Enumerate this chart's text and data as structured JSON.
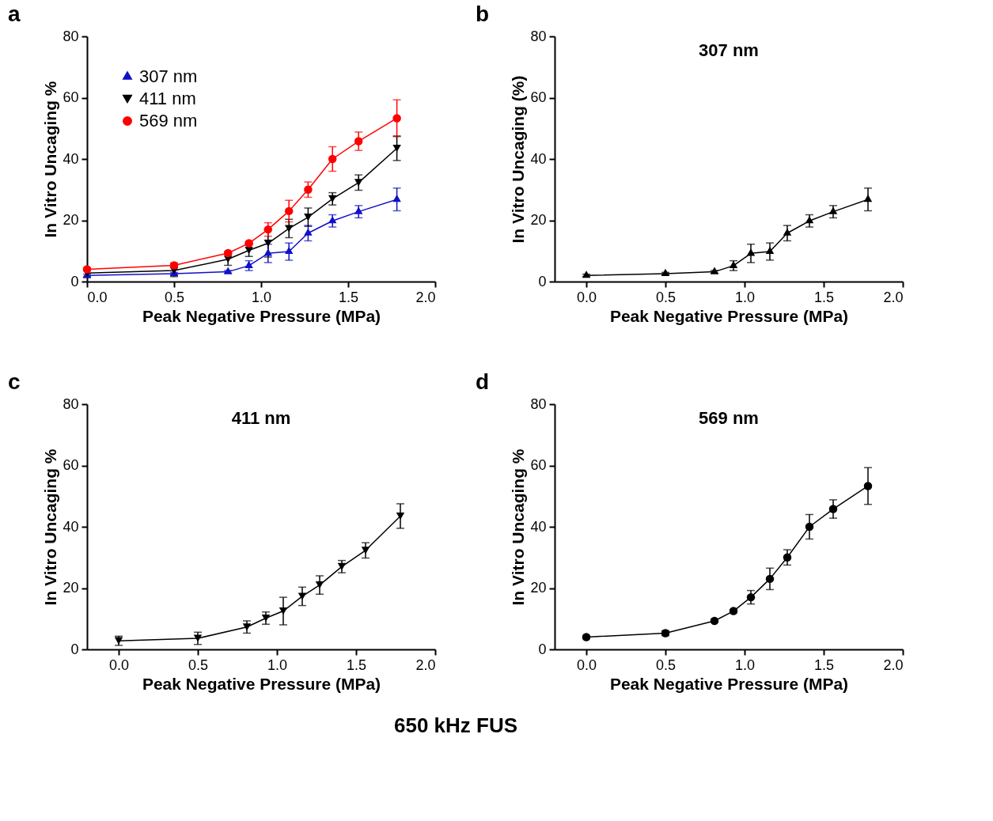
{
  "chart_data": [
    {
      "type": "line",
      "xlabel": "Peak Negative Pressure (MPa)",
      "ylabel": "In Vitro Uncaging %",
      "annotations": [
        "a"
      ],
      "legend": "top left",
      "grid": false,
      "x": [
        0,
        0.5,
        0.81,
        0.93,
        1.04,
        1.16,
        1.27,
        1.41,
        1.56,
        1.78
      ],
      "xlim": [
        0,
        2.0
      ],
      "xticks": [
        {
          "value": 0,
          "label": "0.0"
        },
        {
          "value": 0.5,
          "label": "0.5"
        },
        {
          "value": 1,
          "label": "1.0"
        },
        {
          "value": 1.5,
          "label": "1.5"
        },
        {
          "value": 2,
          "label": "2.0"
        }
      ],
      "ylim": [
        0,
        80
      ],
      "yticks": [
        0,
        20,
        40,
        60,
        80
      ],
      "series": [
        {
          "name": "307 nm",
          "color": "#1010c8",
          "marker": "triangle",
          "values": [
            2,
            2.6,
            3.2,
            5.2,
            9.2,
            9.8,
            15.8,
            19.8,
            22.8,
            26.8
          ],
          "errors": [
            0.4,
            0.4,
            0.4,
            1.6,
            3,
            2.8,
            2.5,
            2,
            2,
            3.7
          ]
        },
        {
          "name": "411 nm",
          "color": "#000000",
          "marker": "triangle-down",
          "values": [
            2.8,
            3.6,
            7.3,
            10.2,
            12.5,
            17.3,
            21,
            27,
            32.3,
            43.5
          ],
          "errors": [
            1.5,
            2,
            2,
            2,
            4.5,
            3,
            3,
            2,
            2.5,
            4
          ]
        },
        {
          "name": "569 nm",
          "color": "#ff0000",
          "marker": "circle",
          "values": [
            4,
            5.3,
            9.3,
            12.5,
            17,
            23,
            30,
            40,
            45.8,
            53.3
          ],
          "errors": [
            0.5,
            0.8,
            0.5,
            0.5,
            2.2,
            3.5,
            2.5,
            4,
            3,
            6
          ]
        }
      ]
    },
    {
      "type": "line",
      "title": "307 nm",
      "xlabel": "Peak Negative Pressure (MPa)",
      "ylabel": "In Vitro Uncaging (%)",
      "annotations": [
        "b"
      ],
      "grid": false,
      "x": [
        0,
        0.5,
        0.81,
        0.93,
        1.04,
        1.16,
        1.27,
        1.41,
        1.56,
        1.78
      ],
      "xlim": [
        -0.2,
        2.0
      ],
      "xticks": [
        {
          "value": 0,
          "label": "0.0"
        },
        {
          "value": 0.5,
          "label": "0.5"
        },
        {
          "value": 1,
          "label": "1.0"
        },
        {
          "value": 1.5,
          "label": "1.5"
        },
        {
          "value": 2,
          "label": "2.0"
        }
      ],
      "ylim": [
        0,
        80
      ],
      "yticks": [
        0,
        20,
        40,
        60,
        80
      ],
      "series": [
        {
          "color": "#000000",
          "marker": "triangle",
          "values": [
            2,
            2.6,
            3.2,
            5.2,
            9.2,
            9.8,
            15.8,
            19.8,
            22.8,
            26.8
          ],
          "errors": [
            0.4,
            0.4,
            0.4,
            1.6,
            3,
            2.8,
            2.5,
            2,
            2,
            3.7
          ]
        }
      ]
    },
    {
      "type": "line",
      "title": "411 nm",
      "xlabel": "Peak Negative Pressure (MPa)",
      "ylabel": "In Vitro Uncaging %",
      "annotations": [
        "c"
      ],
      "grid": false,
      "x": [
        0,
        0.5,
        0.81,
        0.93,
        1.04,
        1.16,
        1.27,
        1.41,
        1.56,
        1.78
      ],
      "xlim": [
        -0.2,
        2.0
      ],
      "xticks": [
        {
          "value": 0,
          "label": "0.0"
        },
        {
          "value": 0.5,
          "label": "0.5"
        },
        {
          "value": 1,
          "label": "1.0"
        },
        {
          "value": 1.5,
          "label": "1.5"
        },
        {
          "value": 2,
          "label": "2.0"
        }
      ],
      "ylim": [
        0,
        80
      ],
      "yticks": [
        0,
        20,
        40,
        60,
        80
      ],
      "series": [
        {
          "color": "#000000",
          "marker": "triangle-down",
          "values": [
            2.8,
            3.6,
            7.3,
            10.2,
            12.5,
            17.3,
            21,
            27,
            32.3,
            43.5
          ],
          "errors": [
            1.5,
            2,
            2,
            2,
            4.5,
            3,
            3,
            2,
            2.5,
            4
          ]
        }
      ]
    },
    {
      "type": "line",
      "title": "569 nm",
      "xlabel": "Peak Negative Pressure (MPa)",
      "ylabel": "In Vitro Uncaging %",
      "annotations": [
        "d",
        "650 kHz FUS"
      ],
      "grid": false,
      "x": [
        0,
        0.5,
        0.81,
        0.93,
        1.04,
        1.16,
        1.27,
        1.41,
        1.56,
        1.78
      ],
      "xlim": [
        -0.2,
        2.0
      ],
      "xticks": [
        {
          "value": 0,
          "label": "0.0"
        },
        {
          "value": 0.5,
          "label": "0.5"
        },
        {
          "value": 1,
          "label": "1.0"
        },
        {
          "value": 1.5,
          "label": "1.5"
        },
        {
          "value": 2,
          "label": "2.0"
        }
      ],
      "ylim": [
        0,
        80
      ],
      "yticks": [
        0,
        20,
        40,
        60,
        80
      ],
      "series": [
        {
          "color": "#000000",
          "marker": "circle",
          "values": [
            4,
            5.3,
            9.3,
            12.5,
            17,
            23,
            30,
            40,
            45.8,
            53.3
          ],
          "errors": [
            0.5,
            0.8,
            0.5,
            0.5,
            2.2,
            3.5,
            2.5,
            4,
            3,
            6
          ]
        }
      ]
    }
  ]
}
